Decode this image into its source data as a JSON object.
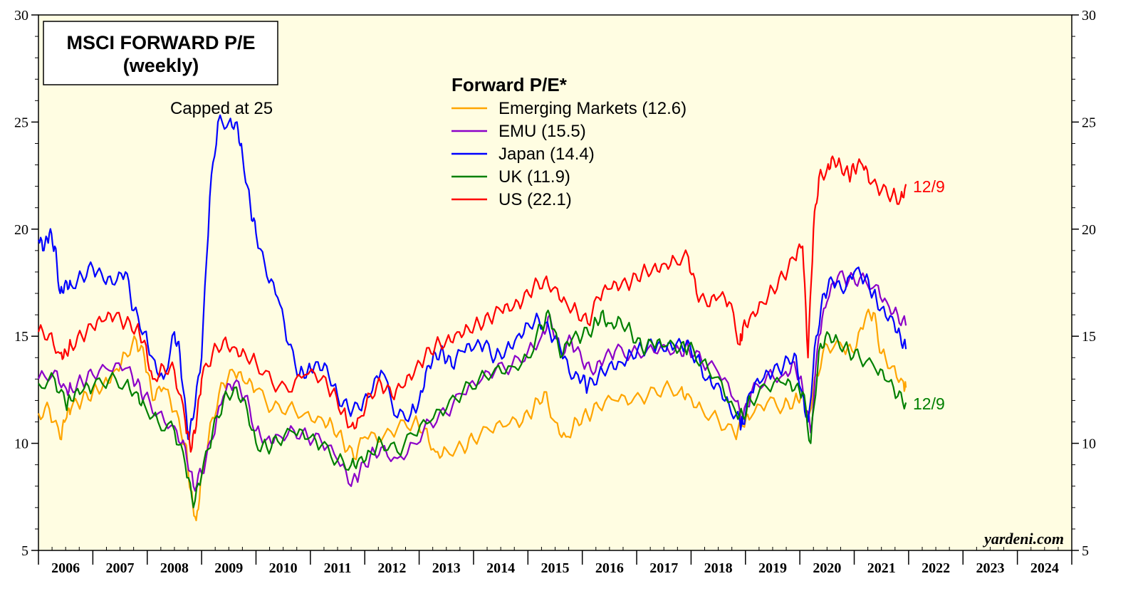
{
  "chart_data": {
    "type": "line",
    "title": "MSCI FORWARD P/E",
    "subtitle": "(weekly)",
    "legend_title": "Forward P/E*",
    "credit": "yardeni.com",
    "annotations": {
      "cap": "Capped at 25",
      "us_end": "12/9",
      "uk_end": "12/9"
    },
    "ylim": [
      5,
      30
    ],
    "yticks": [
      5,
      10,
      15,
      20,
      25,
      30
    ],
    "xlim": [
      2006,
      2025
    ],
    "years": [
      "2006",
      "2007",
      "2008",
      "2009",
      "2010",
      "2011",
      "2012",
      "2013",
      "2014",
      "2015",
      "2016",
      "2017",
      "2018",
      "2019",
      "2020",
      "2021",
      "2022",
      "2023",
      "2024"
    ],
    "grid": false,
    "legend_position": "top-center",
    "colors": {
      "plot_bg": "#FFFDE2"
    },
    "series": [
      {
        "name": "Emerging Markets (12.6)",
        "color": "#FFA500",
        "x": [
          2006.0,
          2006.2,
          2006.4,
          2006.5,
          2006.6,
          2006.8,
          2007.0,
          2007.2,
          2007.4,
          2007.6,
          2007.8,
          2007.95,
          2008.1,
          2008.3,
          2008.5,
          2008.7,
          2008.8,
          2008.9,
          2009.0,
          2009.2,
          2009.4,
          2009.6,
          2009.8,
          2010.0,
          2010.3,
          2010.6,
          2010.9,
          2011.2,
          2011.4,
          2011.6,
          2011.8,
          2012.0,
          2012.3,
          2012.6,
          2012.9,
          2013.1,
          2013.3,
          2013.5,
          2013.8,
          2014.0,
          2014.3,
          2014.6,
          2014.9,
          2015.1,
          2015.3,
          2015.5,
          2015.7,
          2015.9,
          2016.1,
          2016.3,
          2016.6,
          2016.9,
          2017.2,
          2017.5,
          2017.8,
          2017.95,
          2018.2,
          2018.5,
          2018.8,
          2018.95,
          2019.1,
          2019.4,
          2019.7,
          2019.9,
          2020.05,
          2020.15,
          2020.3,
          2020.5,
          2020.8,
          2021.0,
          2021.2,
          2021.35,
          2021.5,
          2021.7,
          2021.9,
          2021.95
        ],
        "y": [
          11.4,
          11.6,
          10.2,
          11.1,
          11.6,
          12.0,
          12.4,
          12.8,
          13.4,
          14.2,
          14.8,
          14.0,
          12.0,
          12.6,
          11.5,
          10.0,
          7.8,
          6.4,
          8.5,
          11.2,
          12.8,
          13.3,
          12.8,
          12.5,
          11.6,
          11.7,
          11.4,
          11.2,
          10.9,
          10.1,
          9.3,
          10.3,
          10.1,
          10.7,
          11.0,
          10.7,
          9.6,
          9.7,
          9.8,
          10.2,
          10.6,
          10.8,
          11.0,
          11.6,
          12.4,
          11.0,
          10.3,
          11.1,
          11.3,
          11.7,
          12.0,
          11.9,
          12.2,
          12.6,
          12.5,
          12.3,
          11.6,
          11.1,
          10.4,
          10.8,
          11.2,
          11.9,
          11.7,
          12.0,
          12.4,
          11.2,
          13.2,
          14.6,
          14.4,
          14.2,
          15.8,
          16.1,
          14.2,
          13.6,
          12.9,
          12.6
        ]
      },
      {
        "name": "EMU (15.5)",
        "color": "#8B00C8",
        "x": [
          2006.0,
          2006.3,
          2006.5,
          2006.6,
          2006.8,
          2007.0,
          2007.3,
          2007.6,
          2007.8,
          2007.95,
          2008.2,
          2008.5,
          2008.7,
          2008.85,
          2009.0,
          2009.2,
          2009.4,
          2009.6,
          2009.8,
          2010.0,
          2010.2,
          2010.4,
          2010.7,
          2010.95,
          2011.2,
          2011.5,
          2011.75,
          2011.9,
          2012.1,
          2012.3,
          2012.6,
          2012.9,
          2013.2,
          2013.5,
          2013.8,
          2014.1,
          2014.4,
          2014.7,
          2015.0,
          2015.25,
          2015.4,
          2015.6,
          2015.8,
          2016.0,
          2016.2,
          2016.4,
          2016.6,
          2016.9,
          2017.2,
          2017.5,
          2017.8,
          2017.95,
          2018.2,
          2018.5,
          2018.8,
          2018.95,
          2019.1,
          2019.4,
          2019.7,
          2019.9,
          2020.05,
          2020.2,
          2020.35,
          2020.5,
          2020.7,
          2020.9,
          2021.1,
          2021.4,
          2021.6,
          2021.8,
          2021.95
        ],
        "y": [
          13.0,
          13.4,
          12.6,
          12.6,
          12.9,
          13.2,
          13.4,
          13.5,
          12.8,
          12.2,
          11.4,
          10.8,
          9.8,
          8.0,
          8.6,
          10.2,
          12.2,
          12.8,
          12.2,
          10.6,
          10.2,
          10.4,
          10.6,
          10.3,
          10.1,
          9.2,
          8.0,
          8.6,
          9.4,
          9.8,
          9.3,
          10.0,
          11.0,
          11.4,
          12.3,
          12.8,
          13.4,
          13.6,
          14.3,
          15.0,
          16.0,
          14.3,
          14.8,
          13.8,
          13.2,
          13.9,
          14.3,
          14.2,
          14.4,
          14.6,
          14.3,
          14.5,
          13.8,
          13.3,
          12.0,
          11.1,
          12.3,
          13.2,
          13.2,
          13.8,
          12.6,
          10.5,
          15.0,
          16.6,
          17.8,
          17.6,
          17.7,
          17.4,
          16.6,
          16.0,
          15.5
        ]
      },
      {
        "name": "Japan (14.4)",
        "color": "#0000FF",
        "x": [
          2006.0,
          2006.1,
          2006.2,
          2006.3,
          2006.4,
          2006.5,
          2006.6,
          2006.8,
          2007.0,
          2007.2,
          2007.4,
          2007.6,
          2007.75,
          2007.95,
          2008.1,
          2008.3,
          2008.5,
          2008.6,
          2008.75,
          2008.85,
          2009.0,
          2009.15,
          2009.3,
          2009.5,
          2009.65,
          2009.75,
          2009.9,
          2010.0,
          2010.2,
          2010.4,
          2010.6,
          2010.8,
          2010.95,
          2011.1,
          2011.3,
          2011.5,
          2011.7,
          2011.9,
          2012.1,
          2012.3,
          2012.6,
          2012.85,
          2013.0,
          2013.15,
          2013.3,
          2013.45,
          2013.6,
          2013.8,
          2014.0,
          2014.2,
          2014.4,
          2014.6,
          2014.8,
          2015.0,
          2015.2,
          2015.4,
          2015.6,
          2015.8,
          2016.0,
          2016.1,
          2016.3,
          2016.5,
          2016.7,
          2016.9,
          2017.1,
          2017.3,
          2017.5,
          2017.7,
          2017.9,
          2018.1,
          2018.3,
          2018.5,
          2018.7,
          2018.9,
          2018.95,
          2019.1,
          2019.3,
          2019.5,
          2019.7,
          2019.9,
          2020.05,
          2020.15,
          2020.3,
          2020.45,
          2020.6,
          2020.8,
          2021.0,
          2021.2,
          2021.35,
          2021.5,
          2021.7,
          2021.85,
          2021.95
        ],
        "y": [
          19.5,
          19.0,
          19.8,
          19.2,
          17.0,
          17.6,
          17.4,
          17.8,
          18.2,
          17.6,
          17.4,
          18.0,
          16.2,
          15.2,
          14.0,
          13.0,
          15.2,
          14.2,
          10.2,
          11.2,
          14.0,
          21.5,
          25.0,
          25.0,
          25.0,
          23.5,
          21.0,
          19.8,
          17.8,
          16.8,
          14.6,
          13.2,
          13.4,
          13.8,
          13.6,
          12.2,
          11.6,
          11.6,
          12.2,
          13.4,
          11.2,
          11.4,
          12.0,
          13.6,
          14.2,
          14.2,
          13.6,
          14.3,
          14.4,
          14.6,
          14.0,
          14.4,
          15.0,
          15.6,
          15.8,
          15.2,
          14.4,
          13.0,
          13.0,
          12.6,
          13.2,
          13.7,
          13.8,
          14.2,
          14.4,
          14.6,
          14.3,
          14.5,
          14.6,
          14.0,
          13.0,
          12.8,
          11.8,
          11.0,
          10.9,
          12.4,
          12.9,
          13.3,
          13.6,
          14.2,
          12.3,
          11.0,
          15.0,
          17.0,
          17.6,
          17.0,
          18.0,
          17.7,
          17.0,
          16.3,
          15.9,
          15.0,
          14.4
        ]
      },
      {
        "name": "UK (11.9)",
        "color": "#008000",
        "x": [
          2006.0,
          2006.3,
          2006.5,
          2006.6,
          2006.8,
          2007.0,
          2007.3,
          2007.6,
          2007.8,
          2007.95,
          2008.2,
          2008.5,
          2008.7,
          2008.85,
          2009.0,
          2009.2,
          2009.4,
          2009.6,
          2009.8,
          2010.0,
          2010.2,
          2010.4,
          2010.7,
          2010.95,
          2011.2,
          2011.5,
          2011.75,
          2011.9,
          2012.1,
          2012.3,
          2012.6,
          2012.9,
          2013.2,
          2013.5,
          2013.8,
          2014.1,
          2014.4,
          2014.7,
          2015.0,
          2015.25,
          2015.4,
          2015.6,
          2015.8,
          2016.0,
          2016.2,
          2016.35,
          2016.5,
          2016.7,
          2016.9,
          2017.1,
          2017.3,
          2017.5,
          2017.8,
          2017.95,
          2018.2,
          2018.5,
          2018.8,
          2018.95,
          2019.1,
          2019.4,
          2019.7,
          2019.9,
          2020.05,
          2020.2,
          2020.35,
          2020.5,
          2020.7,
          2020.9,
          2021.1,
          2021.4,
          2021.6,
          2021.8,
          2021.95
        ],
        "y": [
          12.8,
          13.0,
          11.8,
          12.0,
          12.4,
          12.6,
          13.0,
          12.8,
          12.4,
          11.8,
          11.0,
          10.6,
          9.0,
          7.0,
          8.5,
          10.5,
          12.0,
          12.6,
          12.0,
          10.0,
          9.8,
          10.1,
          10.5,
          10.2,
          9.9,
          9.2,
          9.0,
          9.3,
          9.6,
          10.1,
          9.6,
          10.4,
          11.0,
          11.6,
          12.4,
          13.0,
          13.5,
          13.6,
          14.0,
          15.5,
          16.0,
          14.0,
          14.8,
          15.0,
          15.4,
          16.1,
          15.6,
          15.8,
          15.2,
          14.4,
          14.6,
          14.5,
          14.4,
          14.5,
          13.8,
          13.1,
          11.6,
          11.3,
          12.0,
          12.6,
          12.8,
          12.5,
          12.4,
          10.0,
          14.3,
          15.2,
          14.8,
          14.3,
          14.0,
          13.4,
          12.9,
          12.2,
          11.9
        ]
      },
      {
        "name": "US (22.1)",
        "color": "#FF0000",
        "x": [
          2006.0,
          2006.2,
          2006.4,
          2006.5,
          2006.6,
          2006.8,
          2007.0,
          2007.2,
          2007.4,
          2007.6,
          2007.8,
          2007.95,
          2008.1,
          2008.3,
          2008.5,
          2008.7,
          2008.8,
          2008.9,
          2009.0,
          2009.2,
          2009.4,
          2009.6,
          2009.8,
          2010.0,
          2010.3,
          2010.6,
          2010.9,
          2011.2,
          2011.4,
          2011.6,
          2011.75,
          2011.9,
          2012.1,
          2012.3,
          2012.5,
          2012.7,
          2012.9,
          2013.1,
          2013.3,
          2013.5,
          2013.7,
          2013.9,
          2014.1,
          2014.3,
          2014.5,
          2014.7,
          2014.9,
          2015.1,
          2015.3,
          2015.5,
          2015.7,
          2015.9,
          2016.1,
          2016.3,
          2016.5,
          2016.7,
          2016.9,
          2017.1,
          2017.3,
          2017.5,
          2017.7,
          2017.95,
          2018.1,
          2018.3,
          2018.5,
          2018.7,
          2018.9,
          2018.95,
          2019.1,
          2019.3,
          2019.5,
          2019.7,
          2019.9,
          2020.05,
          2020.15,
          2020.25,
          2020.35,
          2020.5,
          2020.6,
          2020.75,
          2020.9,
          2021.0,
          2021.15,
          2021.3,
          2021.5,
          2021.7,
          2021.85,
          2021.95
        ],
        "y": [
          15.2,
          15.1,
          14.2,
          14.3,
          14.6,
          15.0,
          15.4,
          15.7,
          15.9,
          15.6,
          15.4,
          14.8,
          13.0,
          13.6,
          13.4,
          11.0,
          9.6,
          10.8,
          13.0,
          14.2,
          14.8,
          14.5,
          14.2,
          13.8,
          12.8,
          12.4,
          13.2,
          13.0,
          12.4,
          11.5,
          10.8,
          11.2,
          12.3,
          12.8,
          12.2,
          12.6,
          13.2,
          14.0,
          14.6,
          14.8,
          15.2,
          15.4,
          15.6,
          15.8,
          16.2,
          16.2,
          16.6,
          17.3,
          17.6,
          17.3,
          16.6,
          16.2,
          15.6,
          16.8,
          17.2,
          17.3,
          17.5,
          18.0,
          18.2,
          18.4,
          18.6,
          18.7,
          17.0,
          16.4,
          16.8,
          16.6,
          14.6,
          15.4,
          16.0,
          16.6,
          17.2,
          17.8,
          18.6,
          19.2,
          14.0,
          20.0,
          22.4,
          22.8,
          23.4,
          23.0,
          22.5,
          22.8,
          23.0,
          22.1,
          21.8,
          21.6,
          21.4,
          22.1
        ]
      }
    ]
  }
}
